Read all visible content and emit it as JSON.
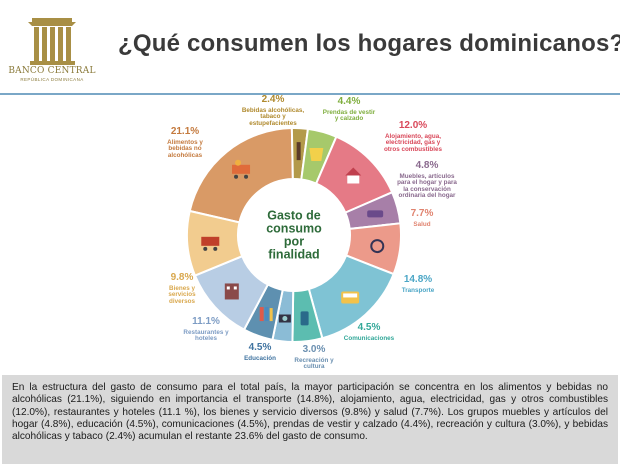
{
  "header": {
    "title": "¿Qué consumen los hogares dominicanos?",
    "logo_name": "BANCO CENTRAL",
    "logo_subtitle": "REPÚBLICA DOMINICANA"
  },
  "chart_data": {
    "type": "pie",
    "title": "Gasto de consumo por finalidad",
    "center_lines": [
      "Gasto de",
      "consumo",
      "por",
      "finalidad"
    ],
    "slices": [
      {
        "pct_label": "21.1%",
        "value": 21.1,
        "label_lines": [
          "Alimentos y",
          "bebidas no",
          "alcohólicas"
        ],
        "color": "#d99a66",
        "text_color": "#c47a3e",
        "icon": "shopping-cart-icon"
      },
      {
        "pct_label": "2.4%",
        "value": 2.4,
        "label_lines": [
          "Bebidas alcohólicas,",
          "tabaco y",
          "estupefacientes"
        ],
        "color": "#b39a4a",
        "text_color": "#b08a2e",
        "icon": "wine-bottle-icon"
      },
      {
        "pct_label": "4.4%",
        "value": 4.4,
        "label_lines": [
          "Prendas de vestir",
          "y calzado"
        ],
        "color": "#a6c96b",
        "text_color": "#7fae3e",
        "icon": "clothes-icon"
      },
      {
        "pct_label": "12.0%",
        "value": 12.0,
        "label_lines": [
          "Alojamiento, agua,",
          "electricidad, gas y",
          "otros combustibles"
        ],
        "color": "#e57a86",
        "text_color": "#d9485a",
        "icon": "house-icon"
      },
      {
        "pct_label": "4.8%",
        "value": 4.8,
        "label_lines": [
          "Muebles, artículos",
          "para el hogar y para",
          "la conservación",
          "ordinaria del hogar"
        ],
        "color": "#a77fa8",
        "text_color": "#8a6a8e",
        "icon": "sofa-icon"
      },
      {
        "pct_label": "7.7%",
        "value": 7.7,
        "label_lines": [
          "Salud"
        ],
        "color": "#ec9a8a",
        "text_color": "#e0836f",
        "icon": "stethoscope-icon"
      },
      {
        "pct_label": "14.8%",
        "value": 14.8,
        "label_lines": [
          "Transporte"
        ],
        "color": "#7fc3d4",
        "text_color": "#4ba6c6",
        "icon": "bus-icon"
      },
      {
        "pct_label": "4.5%",
        "value": 4.5,
        "label_lines": [
          "Comunicaciones"
        ],
        "color": "#5cbdb0",
        "text_color": "#33a899",
        "icon": "phone-icon"
      },
      {
        "pct_label": "3.0%",
        "value": 3.0,
        "label_lines": [
          "Recreación y",
          "cultura"
        ],
        "color": "#8bbcd6",
        "text_color": "#6a8fb0",
        "icon": "camera-icon"
      },
      {
        "pct_label": "4.5%",
        "value": 4.5,
        "label_lines": [
          "Educación"
        ],
        "color": "#5e90b0",
        "text_color": "#3f73a0",
        "icon": "books-icon"
      },
      {
        "pct_label": "11.1%",
        "value": 11.1,
        "label_lines": [
          "Restaurantes y",
          "hoteles"
        ],
        "color": "#b8cde4",
        "text_color": "#7d9cc4",
        "icon": "hotel-icon"
      },
      {
        "pct_label": "9.8%",
        "value": 9.8,
        "label_lines": [
          "Bienes y",
          "servicios",
          "diversos"
        ],
        "color": "#f2cc8f",
        "text_color": "#d9a84e",
        "icon": "cart-icon"
      }
    ]
  },
  "summary": {
    "text": "En la estructura del gasto de consumo para el total país, la mayor participación se concentra en los alimentos y bebidas no alcohólicas (21.1%), siguiendo en importancia el transporte (14.8%), alojamiento, agua, electricidad, gas y otros combustibles (12.0%), restaurantes y hoteles (11.1 %), los bienes y servicio diversos (9.8%) y salud (7.7%). Los grupos muebles y artículos del hogar (4.8%), educación (4.5%), comunicaciones (4.5%), prendas de vestir y calzado (4.4%), recreación y cultura (3.0%), y bebidas alcohólicas y tabaco (2.4%) acumulan el restante 23.6% del gasto de consumo."
  }
}
